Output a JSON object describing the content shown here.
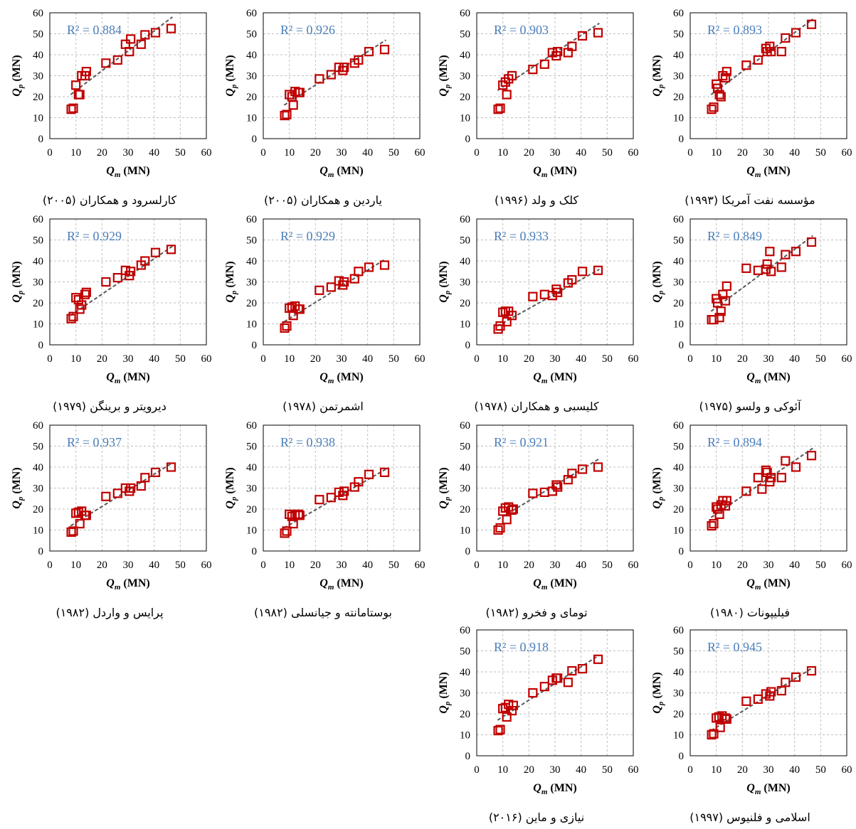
{
  "figure": {
    "x_axis_label": "Qm (MN)",
    "y_axis_label": "Qp (MN)"
  },
  "chart_data": [
    {
      "type": "scatter",
      "caption": "مؤسسه نفت آمریکا (۱۹۹۳)",
      "r2_label": "R² = 0.893",
      "xlim": [
        0,
        60
      ],
      "ylim": [
        0,
        60
      ],
      "x_ticks": [
        0,
        10,
        20,
        30,
        40,
        50,
        60
      ],
      "y_ticks": [
        0,
        10,
        20,
        30,
        40,
        50,
        60
      ],
      "xlabel": "Qm (MN)",
      "ylabel": "Qp (MN)",
      "trendline": {
        "style": "dashed",
        "from": [
          8,
          21
        ],
        "to": [
          47,
          57
        ]
      },
      "x": [
        8.2,
        9,
        10,
        10.5,
        11.2,
        11.8,
        12.5,
        13.5,
        14,
        21.5,
        26,
        29,
        29.5,
        30.5,
        31,
        35,
        36.5,
        40.5,
        46.5
      ],
      "y": [
        14,
        15,
        26,
        24,
        21,
        20,
        30,
        29,
        32,
        35,
        37.5,
        43,
        41.5,
        44,
        41.5,
        41.5,
        48,
        50.5,
        54.5
      ]
    },
    {
      "type": "scatter",
      "caption": "کلک و ولد (۱۹۹۶)",
      "r2_label": "R² = 0.903",
      "xlim": [
        0,
        60
      ],
      "ylim": [
        0,
        60
      ],
      "x_ticks": [
        0,
        10,
        20,
        30,
        40,
        50,
        60
      ],
      "y_ticks": [
        0,
        10,
        20,
        30,
        40,
        50,
        60
      ],
      "xlabel": "Qm (MN)",
      "ylabel": "Qp (MN)",
      "trendline": {
        "style": "dashed",
        "from": [
          8,
          23
        ],
        "to": [
          47,
          55
        ]
      },
      "x": [
        8.2,
        9,
        10,
        11,
        11.5,
        12.2,
        13.5,
        21.5,
        26,
        29,
        30.5,
        31,
        35,
        36.5,
        40.5,
        46.5
      ],
      "y": [
        14,
        14.5,
        25.5,
        27,
        21,
        28.5,
        30,
        33,
        35.5,
        41,
        39.5,
        41.5,
        41,
        44,
        49,
        50.5
      ]
    },
    {
      "type": "scatter",
      "caption": "یاردین و همکاران (۲۰۰۵)",
      "r2_label": "R² = 0.926",
      "xlim": [
        0,
        60
      ],
      "ylim": [
        0,
        60
      ],
      "x_ticks": [
        0,
        10,
        20,
        30,
        40,
        50,
        60
      ],
      "y_ticks": [
        0,
        10,
        20,
        30,
        40,
        50,
        60
      ],
      "xlabel": "Qm (MN)",
      "ylabel": "Qp (MN)",
      "trendline": {
        "style": "dashed",
        "from": [
          8,
          16
        ],
        "to": [
          47,
          47
        ]
      },
      "x": [
        8.2,
        9,
        10,
        11,
        11.5,
        12.2,
        13.5,
        14,
        21.5,
        26,
        29,
        30.5,
        31,
        35,
        36.5,
        40.5,
        46.5
      ],
      "y": [
        11,
        11.5,
        21,
        20,
        16,
        22.5,
        22,
        22,
        28.5,
        30.5,
        34,
        32.5,
        34,
        36,
        37.5,
        41.5,
        42.5
      ]
    },
    {
      "type": "scatter",
      "caption": "کارلسرود و همکاران (۲۰۰۵)",
      "r2_label": "R² = 0.884",
      "xlim": [
        0,
        60
      ],
      "ylim": [
        0,
        60
      ],
      "x_ticks": [
        0,
        10,
        20,
        30,
        40,
        50,
        60
      ],
      "y_ticks": [
        0,
        10,
        20,
        30,
        40,
        50,
        60
      ],
      "xlabel": "Qm (MN)",
      "ylabel": "Qp (MN)",
      "trendline": {
        "style": "dashed",
        "from": [
          8,
          21
        ],
        "to": [
          47,
          58
        ]
      },
      "x": [
        8.2,
        9,
        10,
        11,
        11.5,
        12.2,
        13.5,
        14,
        21.5,
        26,
        29,
        30.5,
        31,
        35,
        36.5,
        40.5,
        46.5
      ],
      "y": [
        14,
        14.5,
        25.5,
        21,
        21,
        30,
        30,
        32,
        36,
        37.5,
        45,
        41.5,
        47.5,
        45,
        49.5,
        50.5,
        52.5
      ]
    },
    {
      "type": "scatter",
      "caption": "آئوکی و ولسو (۱۹۷۵)",
      "r2_label": "R² = 0.849",
      "xlim": [
        0,
        60
      ],
      "ylim": [
        0,
        60
      ],
      "x_ticks": [
        0,
        10,
        20,
        30,
        40,
        50,
        60
      ],
      "y_ticks": [
        0,
        10,
        20,
        30,
        40,
        50,
        60
      ],
      "xlabel": "Qm (MN)",
      "ylabel": "Qp (MN)",
      "trendline": {
        "style": "dashed",
        "from": [
          8,
          16
        ],
        "to": [
          47,
          52
        ]
      },
      "x": [
        8.2,
        9,
        10,
        10.5,
        11.2,
        11.8,
        12.5,
        13.5,
        14,
        21.5,
        26,
        29,
        29.5,
        30.5,
        31,
        35,
        36.5,
        40.5,
        46.5
      ],
      "y": [
        12,
        12,
        22,
        20,
        13,
        16,
        24,
        21,
        28,
        36.5,
        35.5,
        36,
        38.5,
        44.5,
        35,
        37,
        43,
        44.5,
        49
      ]
    },
    {
      "type": "scatter",
      "caption": "کلیسبی و همکاران (۱۹۷۸)",
      "r2_label": "R² = 0.933",
      "xlim": [
        0,
        60
      ],
      "ylim": [
        0,
        60
      ],
      "x_ticks": [
        0,
        10,
        20,
        30,
        40,
        50,
        60
      ],
      "y_ticks": [
        0,
        10,
        20,
        30,
        40,
        50,
        60
      ],
      "xlabel": "Qm (MN)",
      "ylabel": "Qp (MN)",
      "trendline": {
        "style": "dashed",
        "from": [
          8,
          9
        ],
        "to": [
          47,
          36
        ]
      },
      "x": [
        8.2,
        9,
        10,
        11,
        11.5,
        12.2,
        13.5,
        21.5,
        26,
        29,
        30.5,
        31,
        35,
        36.5,
        40.5,
        46.5
      ],
      "y": [
        7.5,
        9,
        15.5,
        16,
        11,
        16,
        14,
        23,
        24,
        23.5,
        26.5,
        25,
        29.5,
        31,
        35,
        35.5
      ]
    },
    {
      "type": "scatter",
      "caption": "اشمرتمن (۱۹۷۸)",
      "r2_label": "R² = 0.929",
      "xlim": [
        0,
        60
      ],
      "ylim": [
        0,
        60
      ],
      "x_ticks": [
        0,
        10,
        20,
        30,
        40,
        50,
        60
      ],
      "y_ticks": [
        0,
        10,
        20,
        30,
        40,
        50,
        60
      ],
      "xlabel": "Qm (MN)",
      "ylabel": "Qp (MN)",
      "trendline": {
        "style": "dashed",
        "from": [
          8,
          11
        ],
        "to": [
          47,
          41
        ]
      },
      "x": [
        8.2,
        9,
        10,
        11,
        11.5,
        12.2,
        13.5,
        14,
        21.5,
        26,
        29,
        30.5,
        31,
        35,
        36.5,
        40.5,
        46.5
      ],
      "y": [
        8,
        9,
        17.5,
        18,
        14,
        18.5,
        17,
        17,
        26,
        27.5,
        30.5,
        28.5,
        30,
        31.5,
        35,
        37,
        38
      ]
    },
    {
      "type": "scatter",
      "caption": "دیرویتر و برینگن (۱۹۷۹)",
      "r2_label": "R² = 0.929",
      "xlim": [
        0,
        60
      ],
      "ylim": [
        0,
        60
      ],
      "x_ticks": [
        0,
        10,
        20,
        30,
        40,
        50,
        60
      ],
      "y_ticks": [
        0,
        10,
        20,
        30,
        40,
        50,
        60
      ],
      "xlabel": "Qm (MN)",
      "ylabel": "Qp (MN)",
      "trendline": {
        "style": "dashed",
        "from": [
          8,
          14
        ],
        "to": [
          47,
          47
        ]
      },
      "x": [
        8.2,
        9,
        10,
        11,
        11.5,
        12.2,
        13.5,
        14,
        21.5,
        26,
        29,
        30.5,
        31,
        35,
        36.5,
        40.5,
        46.5
      ],
      "y": [
        12.5,
        13.5,
        22.5,
        21.5,
        17,
        19,
        24,
        25,
        30,
        32,
        35.5,
        33,
        35,
        38,
        40,
        44,
        45.5
      ]
    },
    {
      "type": "scatter",
      "caption": "فیلیپونات (۱۹۸۰)",
      "r2_label": "R² = 0.894",
      "xlim": [
        0,
        60
      ],
      "ylim": [
        0,
        60
      ],
      "x_ticks": [
        0,
        10,
        20,
        30,
        40,
        50,
        60
      ],
      "y_ticks": [
        0,
        10,
        20,
        30,
        40,
        50,
        60
      ],
      "xlabel": "Qm (MN)",
      "ylabel": "Qp (MN)",
      "trendline": {
        "style": "dashed",
        "from": [
          8,
          16
        ],
        "to": [
          47,
          49
        ]
      },
      "x": [
        8.2,
        9,
        10,
        10.5,
        11.2,
        11.8,
        12.5,
        13.5,
        14,
        21.5,
        26,
        27.5,
        29,
        29.5,
        30.5,
        31,
        35,
        36.5,
        40.5,
        46.5
      ],
      "y": [
        12,
        13,
        21,
        20,
        17.5,
        22,
        24,
        21.5,
        24,
        28.5,
        35,
        29.5,
        38.5,
        37.5,
        33,
        35,
        35,
        43,
        40,
        45.5
      ]
    },
    {
      "type": "scatter",
      "caption": "تومای و فخرو (۱۹۸۲)",
      "r2_label": "R² = 0.921",
      "xlim": [
        0,
        60
      ],
      "ylim": [
        0,
        60
      ],
      "x_ticks": [
        0,
        10,
        20,
        30,
        40,
        50,
        60
      ],
      "y_ticks": [
        0,
        10,
        20,
        30,
        40,
        50,
        60
      ],
      "xlabel": "Qm (MN)",
      "ylabel": "Qp (MN)",
      "trendline": {
        "style": "dashed",
        "from": [
          8,
          15
        ],
        "to": [
          47,
          44
        ]
      },
      "x": [
        8.2,
        9,
        10,
        11,
        11.5,
        12.2,
        13.5,
        14,
        21.5,
        26,
        29,
        30.5,
        31,
        35,
        36.5,
        40.5,
        46.5
      ],
      "y": [
        10,
        11,
        19,
        20.5,
        15,
        21,
        19.5,
        20,
        27.5,
        28,
        28.5,
        31.5,
        30.5,
        34,
        37,
        39,
        40
      ]
    },
    {
      "type": "scatter",
      "caption": "بوستامانته و جیانسلی (۱۹۸۲)",
      "r2_label": "R² = 0.938",
      "xlim": [
        0,
        60
      ],
      "ylim": [
        0,
        60
      ],
      "x_ticks": [
        0,
        10,
        20,
        30,
        40,
        50,
        60
      ],
      "y_ticks": [
        0,
        10,
        20,
        30,
        40,
        50,
        60
      ],
      "xlabel": "Qm (MN)",
      "ylabel": "Qp (MN)",
      "trendline": {
        "style": "dashed",
        "from": [
          8,
          11
        ],
        "to": [
          47,
          39
        ]
      },
      "x": [
        8.2,
        9,
        10,
        11,
        11.5,
        12.2,
        13.5,
        14,
        21.5,
        26,
        29,
        30.5,
        31,
        35,
        36.5,
        40.5,
        46.5
      ],
      "y": [
        8.5,
        9.5,
        17.5,
        16.5,
        13,
        17,
        17.5,
        17,
        24.5,
        25.5,
        28,
        26.5,
        28.5,
        30.5,
        33,
        36.5,
        37.5
      ]
    },
    {
      "type": "scatter",
      "caption": "پرایس و واردل (۱۹۸۲)",
      "r2_label": "R² = 0.937",
      "xlim": [
        0,
        60
      ],
      "ylim": [
        0,
        60
      ],
      "x_ticks": [
        0,
        10,
        20,
        30,
        40,
        50,
        60
      ],
      "y_ticks": [
        0,
        10,
        20,
        30,
        40,
        50,
        60
      ],
      "xlabel": "Qm (MN)",
      "ylabel": "Qp (MN)",
      "trendline": {
        "style": "dashed",
        "from": [
          8,
          12
        ],
        "to": [
          47,
          42
        ]
      },
      "x": [
        8.2,
        9,
        10,
        11,
        11.5,
        12.2,
        13.5,
        14,
        21.5,
        26,
        29,
        30.5,
        31,
        35,
        36.5,
        40.5,
        46.5
      ],
      "y": [
        9,
        9.5,
        18,
        18.5,
        13,
        19,
        17,
        17,
        26,
        27.5,
        30,
        28.5,
        30,
        31,
        35,
        37.5,
        40
      ]
    },
    {
      "type": "scatter",
      "caption": "نیازی و ماین (۲۰۱۶)",
      "r2_label": "R² = 0.918",
      "xlim": [
        0,
        60
      ],
      "ylim": [
        0,
        60
      ],
      "x_ticks": [
        0,
        10,
        20,
        30,
        40,
        50,
        60
      ],
      "y_ticks": [
        0,
        10,
        20,
        30,
        40,
        50,
        60
      ],
      "xlabel": "Qm (MN)",
      "ylabel": "Qp (MN)",
      "trendline": {
        "style": "dashed",
        "from": [
          8,
          17
        ],
        "to": [
          47,
          48
        ]
      },
      "x": [
        8.2,
        9,
        10,
        11,
        11.5,
        12.2,
        13.5,
        14,
        21.5,
        26,
        29,
        30.5,
        31,
        35,
        36.5,
        40.5,
        46.5
      ],
      "y": [
        12,
        12.5,
        22.5,
        23,
        18.5,
        24.5,
        21.5,
        24,
        30,
        33,
        36,
        37,
        37,
        35,
        40.5,
        41.5,
        46
      ]
    },
    {
      "type": "scatter",
      "caption": "اسلامی و فلنیوس (۱۹۹۷)",
      "r2_label": "R² = 0.945",
      "xlim": [
        0,
        60
      ],
      "ylim": [
        0,
        60
      ],
      "x_ticks": [
        0,
        10,
        20,
        30,
        40,
        50,
        60
      ],
      "y_ticks": [
        0,
        10,
        20,
        30,
        40,
        50,
        60
      ],
      "xlabel": "Qm (MN)",
      "ylabel": "Qp (MN)",
      "trendline": {
        "style": "dashed",
        "from": [
          8,
          12
        ],
        "to": [
          47,
          42
        ]
      },
      "x": [
        8.2,
        9,
        10,
        11,
        11.5,
        12.2,
        13.5,
        14,
        21.5,
        26,
        29,
        30.5,
        31,
        35,
        36.5,
        40.5,
        46.5
      ],
      "y": [
        10,
        10.5,
        18,
        18.5,
        13.5,
        19,
        18,
        17.5,
        26,
        27,
        29.5,
        28.5,
        30.5,
        31,
        35,
        37.5,
        40.5
      ]
    }
  ],
  "style": {
    "marker_color": "#c00000",
    "trendline_color": "#595959",
    "r2_color": "#4a7ebb",
    "grid_color": "#bfbfbf"
  }
}
